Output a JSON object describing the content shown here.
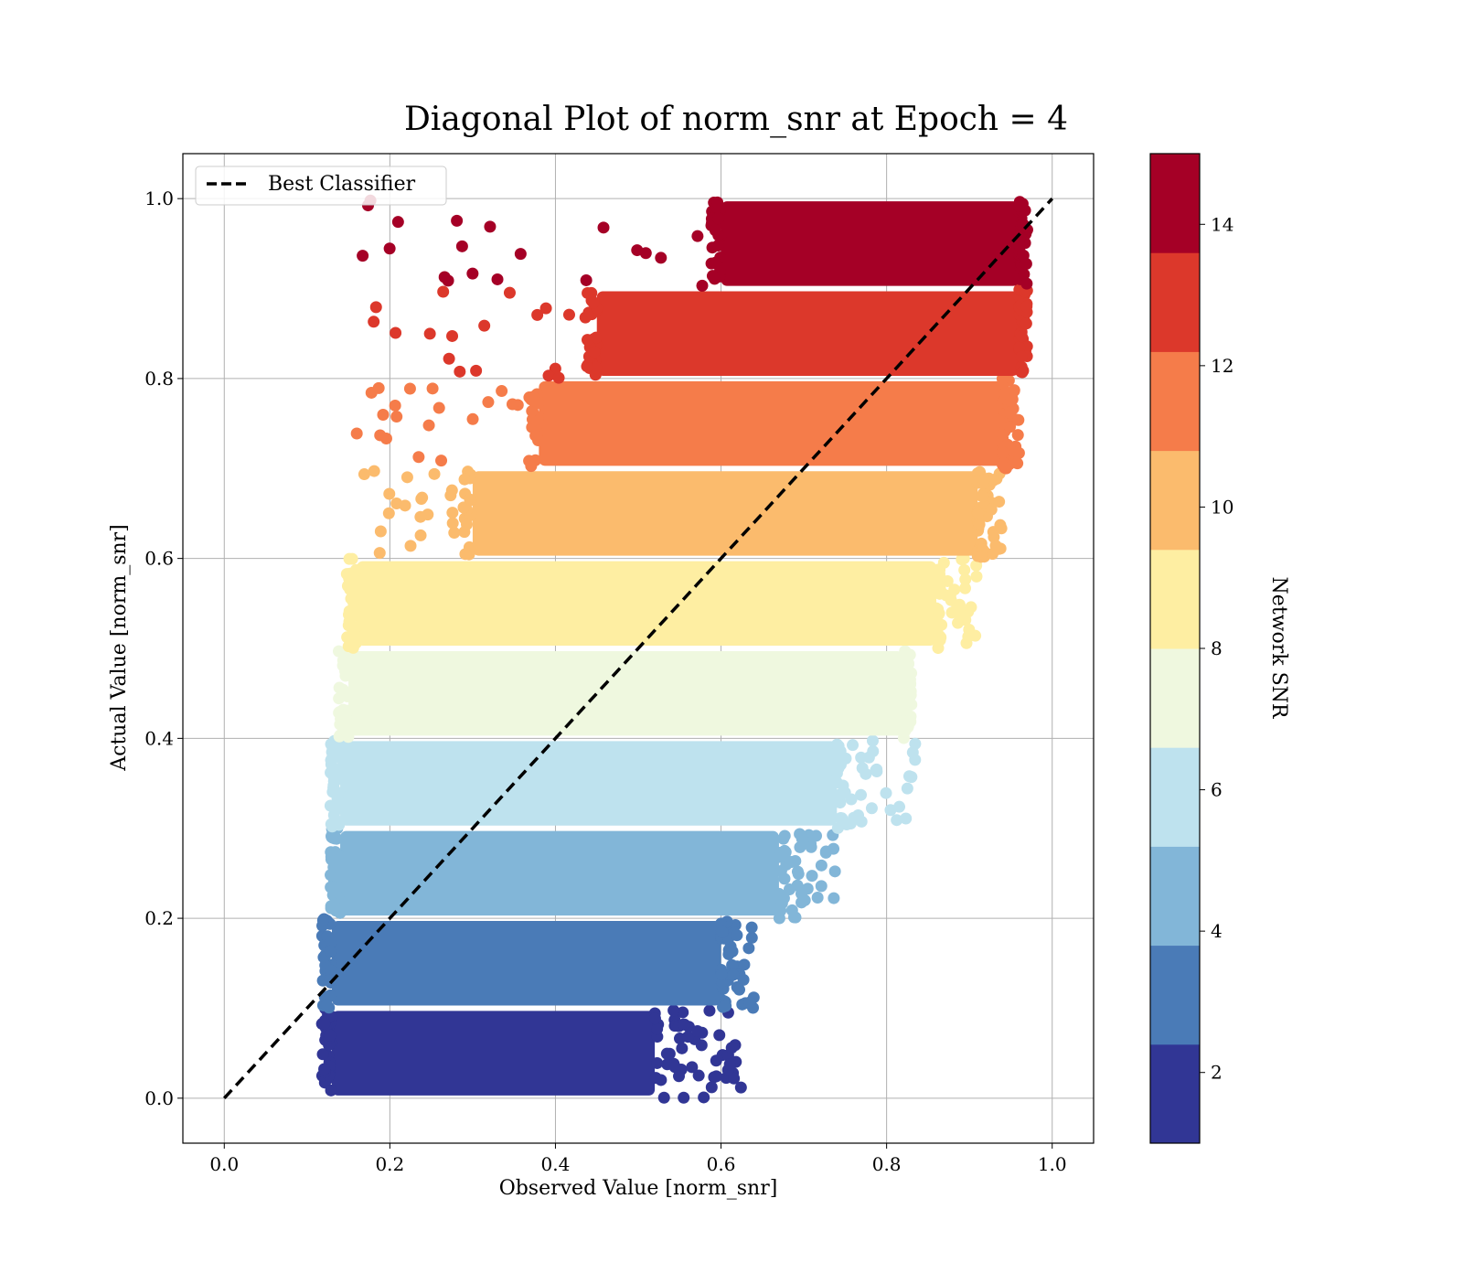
{
  "chart_data": {
    "type": "scatter",
    "title": "Diagonal Plot of norm_snr at Epoch = 4",
    "xlabel": "Observed Value [norm_snr]",
    "ylabel": "Actual Value [norm_snr]",
    "xlim": [
      -0.05,
      1.05
    ],
    "ylim": [
      -0.05,
      1.05
    ],
    "x_ticks": [
      "0.0",
      "0.2",
      "0.4",
      "0.6",
      "0.8",
      "1.0"
    ],
    "y_ticks": [
      "0.0",
      "0.2",
      "0.4",
      "0.6",
      "0.8",
      "1.0"
    ],
    "grid": true,
    "legend": {
      "placement": "upper-left",
      "entries": [
        {
          "label": "Best Classifier",
          "style": "black dashed line"
        }
      ]
    },
    "reference_line": {
      "name": "Best Classifier",
      "x": [
        0.0,
        1.0
      ],
      "y": [
        0.0,
        1.0
      ],
      "color": "#000000",
      "dash": true
    },
    "colorbar": {
      "label": "Network SNR",
      "range": [
        1,
        15
      ],
      "tick_values": [
        2,
        4,
        6,
        8,
        10,
        12,
        14
      ],
      "tick_labels": [
        "2",
        "4",
        "6",
        "8",
        "10",
        "12",
        "14"
      ],
      "colors": [
        "#313695",
        "#4a7bb7",
        "#82b6d8",
        "#bee2ee",
        "#eff8df",
        "#feeea2",
        "#fbbb6d",
        "#f57c4a",
        "#dc382b",
        "#a50026"
      ]
    },
    "bands": [
      {
        "color": "#313695",
        "y_range": [
          0.0,
          0.1
        ],
        "core_x": [
          0.13,
          0.52
        ],
        "max_x": 0.63
      },
      {
        "color": "#4a7bb7",
        "y_range": [
          0.1,
          0.2
        ],
        "core_x": [
          0.13,
          0.6
        ],
        "max_x": 0.64
      },
      {
        "color": "#82b6d8",
        "y_range": [
          0.2,
          0.3
        ],
        "core_x": [
          0.14,
          0.67
        ],
        "max_x": 0.74
      },
      {
        "color": "#bee2ee",
        "y_range": [
          0.3,
          0.4
        ],
        "core_x": [
          0.14,
          0.74
        ],
        "max_x": 0.84
      },
      {
        "color": "#eff8df",
        "y_range": [
          0.4,
          0.5
        ],
        "core_x": [
          0.15,
          0.82
        ],
        "max_x": 0.83
      },
      {
        "color": "#feeea2",
        "y_range": [
          0.5,
          0.6
        ],
        "core_x": [
          0.16,
          0.86
        ],
        "max_x": 0.91
      },
      {
        "color": "#fbbb6d",
        "y_range": [
          0.6,
          0.7
        ],
        "core_x": [
          0.3,
          0.91
        ],
        "max_x": 0.94
      },
      {
        "color": "#f57c4a",
        "y_range": [
          0.7,
          0.8
        ],
        "core_x": [
          0.38,
          0.94
        ],
        "max_x": 0.96
      },
      {
        "color": "#dc382b",
        "y_range": [
          0.8,
          0.9
        ],
        "core_x": [
          0.45,
          0.96
        ],
        "max_x": 0.97
      },
      {
        "color": "#a50026",
        "y_range": [
          0.9,
          1.0
        ],
        "core_x": [
          0.6,
          0.96
        ],
        "max_x": 0.97
      }
    ]
  }
}
